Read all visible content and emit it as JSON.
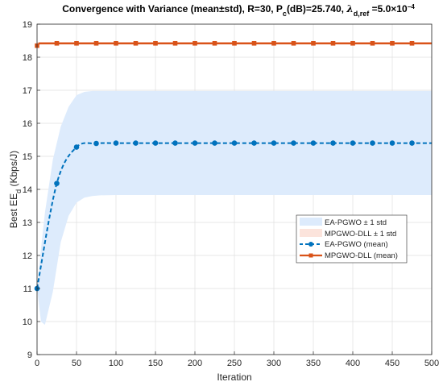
{
  "chart_data": {
    "type": "line",
    "title": "Convergence with Variance (mean±std), R=30, P",
    "title_parts": {
      "a": "Convergence with Variance (mean±std), R=30, P",
      "a_sub": "c",
      "b": "(dB)=25.740, ",
      "lambda": "λ",
      "lambda_sub": "d,ref",
      "c": " =5.0×10",
      "c_sup": "−4"
    },
    "xlabel": "Iteration",
    "ylabel_main": "Best EE",
    "ylabel_sub": "d",
    "ylabel_tail": " (Kbps/J)",
    "xlim": [
      0,
      500
    ],
    "ylim": [
      9,
      19
    ],
    "xticks": [
      "0",
      "50",
      "100",
      "150",
      "200",
      "250",
      "300",
      "350",
      "400",
      "450",
      "500"
    ],
    "yticks": [
      "9",
      "10",
      "11",
      "12",
      "13",
      "14",
      "15",
      "16",
      "17",
      "18",
      "19"
    ],
    "grid": true,
    "legend_placement": "center-right",
    "colors": {
      "ea_pgwo": "#0072BD",
      "mpgwo_dll": "#D95319",
      "ea_band": "#DDEBFC",
      "mpgwo_band": "#FCE4DC"
    },
    "series": [
      {
        "name": "EA-PGWO (mean)",
        "style": "dashed-circle",
        "x": [
          0,
          25,
          50,
          75,
          100,
          125,
          150,
          175,
          200,
          225,
          250,
          275,
          300,
          325,
          350,
          375,
          400,
          425,
          450,
          475
        ],
        "values": [
          11.0,
          14.18,
          15.28,
          15.39,
          15.4,
          15.4,
          15.4,
          15.4,
          15.4,
          15.4,
          15.4,
          15.4,
          15.4,
          15.4,
          15.4,
          15.4,
          15.4,
          15.4,
          15.4,
          15.4
        ]
      },
      {
        "name": "MPGWO-DLL (mean)",
        "style": "solid-square",
        "x": [
          0,
          25,
          50,
          75,
          100,
          125,
          150,
          175,
          200,
          225,
          250,
          275,
          300,
          325,
          350,
          375,
          400,
          425,
          450,
          475
        ],
        "values": [
          18.35,
          18.42,
          18.42,
          18.42,
          18.42,
          18.42,
          18.42,
          18.42,
          18.42,
          18.42,
          18.42,
          18.42,
          18.42,
          18.42,
          18.42,
          18.42,
          18.42,
          18.42,
          18.42,
          18.42
        ]
      }
    ],
    "bands": [
      {
        "name": "EA-PGWO ± 1 std",
        "x": [
          0,
          5,
          10,
          20,
          30,
          40,
          50,
          60,
          70,
          80,
          100,
          500
        ],
        "lower": [
          11.0,
          10.0,
          9.9,
          10.9,
          12.4,
          13.2,
          13.6,
          13.75,
          13.8,
          13.82,
          13.83,
          13.83
        ],
        "upper": [
          11.0,
          12.2,
          13.3,
          14.9,
          15.9,
          16.5,
          16.85,
          16.95,
          16.98,
          16.98,
          16.98,
          16.98
        ]
      },
      {
        "name": "MPGWO-DLL ± 1 std",
        "x": [
          0,
          500
        ],
        "lower": [
          18.38,
          18.38
        ],
        "upper": [
          18.46,
          18.46
        ]
      }
    ]
  }
}
